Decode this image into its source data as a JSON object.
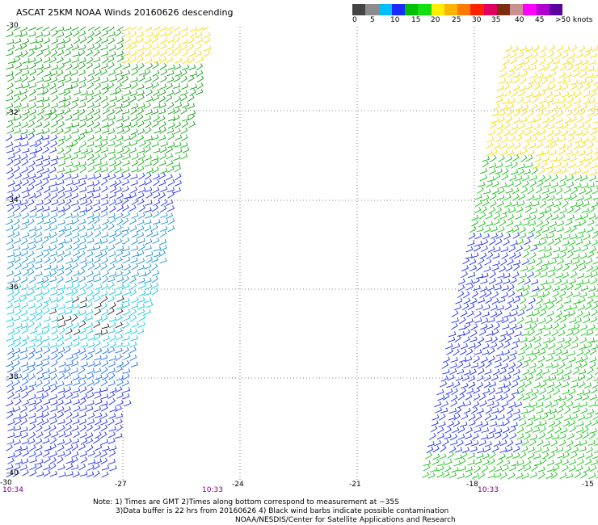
{
  "title": "ASCAT 25KM NOAA Winds 20160626 descending",
  "colorbar": {
    "colors": [
      "#444444",
      "#8c8c8c",
      "#00bfff",
      "#1a2bff",
      "#00c000",
      "#12e012",
      "#ffee00",
      "#ffb400",
      "#ff7a00",
      "#ff2200",
      "#e00060",
      "#7a3010",
      "#c89090",
      "#ff00ff",
      "#b000d0",
      "#5a00a0"
    ],
    "labels": [
      "0",
      "5",
      "10",
      "15",
      "20",
      "25",
      "30",
      "35",
      "40",
      "45",
      ">50 knots"
    ]
  },
  "axes": {
    "lat_labels": [
      "-30",
      "-32",
      "-34",
      "-36",
      "-38",
      "-40"
    ],
    "lon_labels": [
      "-30",
      "-27",
      "-24",
      "-21",
      "-18",
      "-15"
    ],
    "grid": "dotted"
  },
  "times": [
    "10:34",
    "10:33",
    "10:33"
  ],
  "swaths": [
    {
      "name": "west",
      "time": "10:34"
    },
    {
      "name": "east",
      "time": "10:33"
    }
  ],
  "notes": [
    "Note: 1) Times are GMT 2)Times along bottom correspond to measurement at ~35S",
    "3)Data buffer is 22 hrs from 20160626 4) Black wind barbs indicate possible contamination",
    "NOAA/NESDIS/Center for Satellite Applications and Research"
  ]
}
